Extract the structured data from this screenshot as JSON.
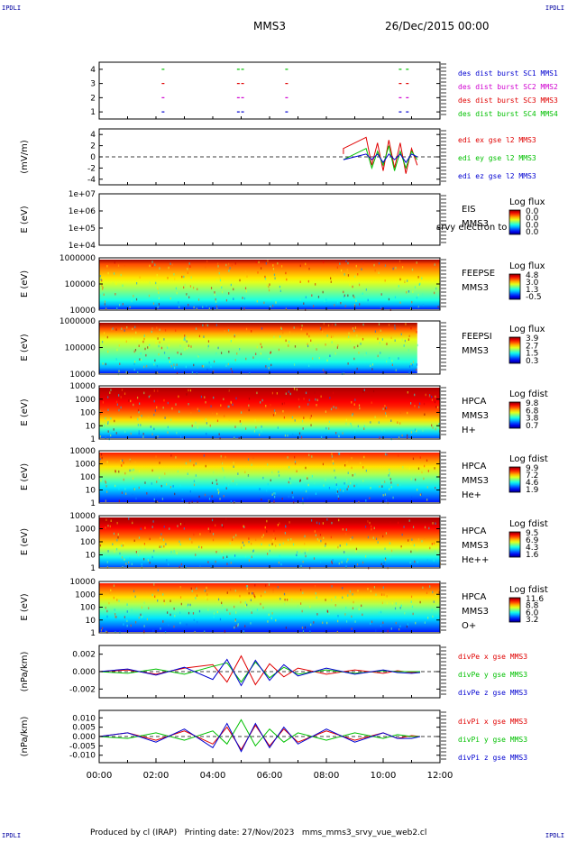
{
  "corner_tags": {
    "top_left": "IPDLI",
    "top_right": "IPDLI",
    "bottom_left": "IPDLI",
    "bottom_right": "IPDLI"
  },
  "header": {
    "title": "MMS3",
    "date": "26/Dec/2015 00:00"
  },
  "footer": {
    "text": "Produced by cl (IRAP)   Printing date: 27/Nov/2023   mms_mms3_srvy_vue_web2.cl"
  },
  "colors": {
    "red": "#e00000",
    "magenta": "#d000d0",
    "green": "#00c000",
    "blue": "#0000d0"
  },
  "chart_data": [
    {
      "id": "p1",
      "type": "scatter",
      "ylim": [
        0.5,
        4.5
      ],
      "yticks": [
        "1",
        "2",
        "3",
        "4"
      ],
      "grid": false,
      "legend": [
        "des dist burst SC1 MMS1",
        "des dist burst SC2 MMS2",
        "des dist burst SC3 MMS3",
        "des dist burst SC4 MMS4"
      ],
      "series": [
        {
          "name": "des dist burst SC1 MMS1",
          "color": "#0000d0",
          "y": 1,
          "x": [
            2.25,
            4.9,
            5.05,
            6.6,
            10.6,
            10.85
          ]
        },
        {
          "name": "des dist burst SC2 MMS2",
          "color": "#d000d0",
          "y": 2,
          "x": [
            2.25,
            4.9,
            5.05,
            6.6,
            10.6,
            10.85
          ]
        },
        {
          "name": "des dist burst SC3 MMS3",
          "color": "#e00000",
          "y": 3,
          "x": [
            2.25,
            4.9,
            5.05,
            6.6,
            10.6,
            10.85
          ]
        },
        {
          "name": "des dist burst SC4 MMS4",
          "color": "#00c000",
          "y": 4,
          "x": [
            2.25,
            4.9,
            5.05,
            6.6,
            10.6,
            10.85
          ]
        }
      ]
    },
    {
      "id": "p2",
      "type": "line",
      "ylabel": "(mV/m)",
      "ylim": [
        -5,
        5
      ],
      "yticks": [
        "-4",
        "-2",
        "0",
        "2",
        "4"
      ],
      "legend": [
        "edi ex gse l2 MMS3",
        "edi ey gse l2 MMS3",
        "edi ez gse l2 MMS3"
      ],
      "series": [
        {
          "name": "edi ex gse l2 MMS3",
          "color": "#e00000",
          "x": [
            8.6,
            8.6,
            9.4,
            9.6,
            9.8,
            10.0,
            10.2,
            10.4,
            10.6,
            10.8,
            11.0,
            11.2
          ],
          "y": [
            0.5,
            1.5,
            3.5,
            -1.5,
            2.5,
            -2.5,
            3,
            -2,
            2.5,
            -3,
            1.5,
            -1.5
          ]
        },
        {
          "name": "edi ey gse l2 MMS3",
          "color": "#00c000",
          "x": [
            8.6,
            9.4,
            9.6,
            9.8,
            10.0,
            10.2,
            10.4,
            10.6,
            10.8,
            11.0,
            11.2
          ],
          "y": [
            -0.5,
            1.5,
            -2,
            1,
            -1.5,
            2,
            -2.5,
            1,
            -2,
            1,
            -0.5
          ]
        },
        {
          "name": "edi ez gse l2 MMS3",
          "color": "#0000d0",
          "x": [
            8.6,
            9.4,
            9.6,
            9.8,
            10.0,
            10.2,
            10.4,
            10.6,
            10.8,
            11.0,
            11.2
          ],
          "y": [
            -0.5,
            0.5,
            -0.5,
            0.5,
            -1,
            0.5,
            -0.5,
            0.5,
            -1,
            0.5,
            0
          ]
        }
      ]
    },
    {
      "id": "p3",
      "type": "heatmap",
      "ylabel": "E (eV)",
      "yscale": "log",
      "ylim": [
        10000,
        10000000
      ],
      "yticks": [
        "1e+04",
        "1e+05",
        "1e+06",
        "1e+07"
      ],
      "label": [
        "EIS",
        "MMS3"
      ],
      "overlay": "srvy electron to",
      "colorbar": {
        "title": "Log flux",
        "ticks": [
          "0.0",
          "0.0",
          "0.0",
          "0.0"
        ]
      },
      "profile": [],
      "t_range": [
        0,
        12
      ]
    },
    {
      "id": "p4",
      "type": "heatmap",
      "ylabel": "E (eV)",
      "yscale": "log",
      "ylim": [
        10000,
        1000000
      ],
      "yticks": [
        "10000",
        "100000",
        "1000000"
      ],
      "label": [
        "FEEPSE",
        "MMS3"
      ],
      "colorbar": {
        "title": "Log flux",
        "ticks": [
          "4.8",
          "3.0",
          "1.3",
          "-0.5"
        ]
      },
      "profile": [
        0.15,
        0.3,
        0.4,
        0.45,
        0.5,
        0.55,
        0.6,
        0.65,
        0.7,
        0.75,
        0.8,
        0.97
      ],
      "t_range": [
        0,
        12
      ]
    },
    {
      "id": "p5",
      "type": "heatmap",
      "ylabel": "E (eV)",
      "yscale": "log",
      "ylim": [
        10000,
        1000000
      ],
      "yticks": [
        "10000",
        "100000",
        "1000000"
      ],
      "label": [
        "FEEPSI",
        "MMS3"
      ],
      "colorbar": {
        "title": "Log flux",
        "ticks": [
          "3.9",
          "2.7",
          "1.5",
          "0.3"
        ]
      },
      "profile": [
        0.15,
        0.3,
        0.4,
        0.45,
        0.5,
        0.55,
        0.6,
        0.7,
        0.8,
        0.97
      ],
      "t_range": [
        0,
        11.2
      ]
    },
    {
      "id": "p6",
      "type": "heatmap",
      "ylabel": "E (eV)",
      "yscale": "log",
      "ylim": [
        1,
        10000
      ],
      "yticks": [
        "1",
        "10",
        "100",
        "1000",
        "10000"
      ],
      "label": [
        "HPCA",
        "MMS3",
        "H+"
      ],
      "colorbar": {
        "title": "Log fdist",
        "ticks": [
          "9.8",
          "6.8",
          "3.8",
          "0.7"
        ]
      },
      "profile": [
        0.2,
        0.32,
        0.44,
        0.56,
        0.66,
        0.74,
        0.8,
        0.85,
        0.88,
        0.91,
        0.93,
        0.96
      ],
      "t_range": [
        0,
        12
      ]
    },
    {
      "id": "p7",
      "type": "heatmap",
      "ylabel": "E (eV)",
      "yscale": "log",
      "ylim": [
        1,
        10000
      ],
      "yticks": [
        "1",
        "10",
        "100",
        "1000",
        "10000"
      ],
      "label": [
        "HPCA",
        "MMS3",
        "He+"
      ],
      "colorbar": {
        "title": "Log fdist",
        "ticks": [
          "9.9",
          "7.2",
          "4.6",
          "1.9"
        ]
      },
      "profile": [
        0.15,
        0.25,
        0.35,
        0.45,
        0.55,
        0.65,
        0.75,
        0.85
      ],
      "t_range": [
        0,
        12
      ]
    },
    {
      "id": "p8",
      "type": "heatmap",
      "ylabel": "E (eV)",
      "yscale": "log",
      "ylim": [
        1,
        10000
      ],
      "yticks": [
        "1",
        "10",
        "100",
        "1000",
        "10000"
      ],
      "label": [
        "HPCA",
        "MMS3",
        "He++"
      ],
      "colorbar": {
        "title": "Log fdist",
        "ticks": [
          "9.5",
          "6.9",
          "4.3",
          "1.6"
        ]
      },
      "profile": [
        0.2,
        0.3,
        0.4,
        0.5,
        0.6,
        0.68,
        0.76,
        0.82,
        0.88,
        0.93,
        0.96
      ],
      "t_range": [
        0,
        12
      ]
    },
    {
      "id": "p9",
      "type": "heatmap",
      "ylabel": "E (eV)",
      "yscale": "log",
      "ylim": [
        1,
        10000
      ],
      "yticks": [
        "1",
        "10",
        "100",
        "1000",
        "10000"
      ],
      "label": [
        "HPCA",
        "MMS3",
        "O+"
      ],
      "colorbar": {
        "title": "Log fdist",
        "ticks": [
          "11.6",
          "8.8",
          "6.0",
          "3.2"
        ]
      },
      "profile": [
        0.15,
        0.25,
        0.35,
        0.45,
        0.55,
        0.65,
        0.75,
        0.85
      ],
      "t_range": [
        0,
        12
      ]
    },
    {
      "id": "p10",
      "type": "line",
      "ylabel": "(nPa/km)",
      "ylim": [
        -0.003,
        0.003
      ],
      "yticks": [
        "-0.002",
        "0.000",
        "0.002"
      ],
      "legend": [
        "divPe x gse MMS3",
        "divPe y gse MMS3",
        "divPe z gse MMS3"
      ],
      "series": [
        {
          "name": "divPe x gse MMS3",
          "color": "#e00000",
          "x": [
            0,
            1,
            2,
            3,
            4,
            4.5,
            5,
            5.5,
            6,
            6.5,
            7,
            8,
            9,
            10,
            10.5,
            11,
            11.3
          ],
          "y": [
            0,
            0.0002,
            -0.0003,
            0.0004,
            0.0008,
            -0.0012,
            0.0018,
            -0.0015,
            0.0009,
            -0.0006,
            0.0004,
            -0.0003,
            0.0002,
            -0.0002,
            0.0001,
            -0.0001,
            0
          ]
        },
        {
          "name": "divPe y gse MMS3",
          "color": "#00c000",
          "x": [
            0,
            1,
            2,
            3,
            4,
            4.5,
            5,
            5.5,
            6,
            6.5,
            7,
            8,
            9,
            10,
            10.5,
            11,
            11.3
          ],
          "y": [
            0,
            -0.0002,
            0.0003,
            -0.0003,
            0.0006,
            0.001,
            -0.0012,
            0.0011,
            -0.0007,
            0.0005,
            -0.0003,
            0.0002,
            -0.0002,
            0.0001,
            0,
            0,
            0
          ]
        },
        {
          "name": "divPe z gse MMS3",
          "color": "#0000d0",
          "x": [
            0,
            1,
            2,
            3,
            4,
            4.5,
            5,
            5.5,
            6,
            6.5,
            7,
            8,
            9,
            10,
            10.5,
            11,
            11.3
          ],
          "y": [
            0,
            0.0003,
            -0.0004,
            0.0005,
            -0.0009,
            0.0014,
            -0.0016,
            0.0013,
            -0.001,
            0.0008,
            -0.0005,
            0.0004,
            -0.0003,
            0.0002,
            -0.0001,
            -0.0002,
            -0.0001
          ]
        }
      ]
    },
    {
      "id": "p11",
      "type": "line",
      "ylabel": "(nPa/km)",
      "ylim": [
        -0.014,
        0.014
      ],
      "yticks": [
        "-0.010",
        "-0.005",
        "0.000",
        "0.005",
        "0.010"
      ],
      "legend": [
        "divPi x gse MMS3",
        "divPi y gse MMS3",
        "divPi z gse MMS3"
      ],
      "series": [
        {
          "name": "divPi x gse MMS3",
          "color": "#e00000",
          "x": [
            0,
            1,
            2,
            3,
            4,
            4.5,
            5,
            5.5,
            6,
            6.5,
            7,
            8,
            9,
            10,
            10.5,
            11,
            11.3
          ],
          "y": [
            0,
            0.002,
            -0.002,
            0.003,
            -0.004,
            0.005,
            -0.007,
            0.006,
            -0.005,
            0.004,
            -0.003,
            0.003,
            -0.002,
            0.002,
            -0.001,
            0.0005,
            0
          ]
        },
        {
          "name": "divPi y gse MMS3",
          "color": "#00c000",
          "x": [
            0,
            1,
            2,
            3,
            4,
            4.5,
            5,
            5.5,
            6,
            6.5,
            7,
            8,
            9,
            10,
            10.5,
            11,
            11.3
          ],
          "y": [
            0,
            -0.001,
            0.002,
            -0.002,
            0.003,
            -0.004,
            0.009,
            -0.005,
            0.004,
            -0.003,
            0.002,
            -0.002,
            0.002,
            -0.001,
            0.001,
            0,
            0
          ]
        },
        {
          "name": "divPi z gse MMS3",
          "color": "#0000d0",
          "x": [
            0,
            1,
            2,
            3,
            4,
            4.5,
            5,
            5.5,
            6,
            6.5,
            7,
            8,
            9,
            10,
            10.5,
            11,
            11.3
          ],
          "y": [
            0,
            0.002,
            -0.003,
            0.004,
            -0.006,
            0.007,
            -0.008,
            0.007,
            -0.006,
            0.005,
            -0.004,
            0.004,
            -0.003,
            0.002,
            -0.001,
            -0.001,
            0
          ]
        }
      ]
    }
  ],
  "x_axis": {
    "ticks": [
      "00:00",
      "02:00",
      "04:00",
      "06:00",
      "08:00",
      "10:00",
      "12:00"
    ],
    "range": [
      0,
      12
    ]
  }
}
